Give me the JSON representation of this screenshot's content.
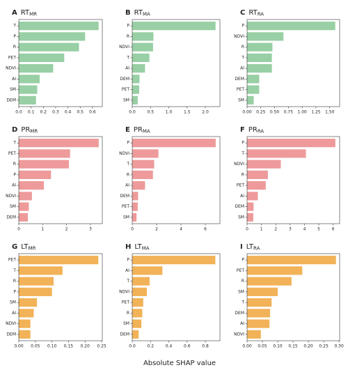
{
  "xlabel": "Absolute SHAP value",
  "chart_data": [
    {
      "type": "bar",
      "orientation": "horizontal",
      "panel": "A",
      "title": "RT",
      "title_sub": "MR",
      "color": "#98cfa4",
      "categories": [
        "T",
        "P",
        "R",
        "PET",
        "NDVI",
        "AI",
        "SM",
        "DEM"
      ],
      "values": [
        0.65,
        0.54,
        0.49,
        0.37,
        0.28,
        0.17,
        0.15,
        0.14
      ],
      "xlim": [
        0,
        0.68
      ],
      "xticks": [
        {
          "value": 0,
          "label": "0.0"
        },
        0.1,
        0.2,
        0.3,
        0.4,
        0.5,
        0.6
      ]
    },
    {
      "type": "bar",
      "orientation": "horizontal",
      "panel": "B",
      "title": "RT",
      "title_sub": "MA",
      "color": "#98cfa4",
      "categories": [
        "P",
        "R",
        "NDVI",
        "T",
        "AI",
        "DEM",
        "PET",
        "SM"
      ],
      "values": [
        2.28,
        0.58,
        0.57,
        0.47,
        0.35,
        0.2,
        0.19,
        0.15
      ],
      "xlim": [
        0,
        2.4
      ],
      "xticks": [
        {
          "value": 0,
          "label": "0.0"
        },
        0.5,
        {
          "value": 1,
          "label": "1.0"
        },
        1.5,
        {
          "value": 2,
          "label": "2.0"
        }
      ]
    },
    {
      "type": "bar",
      "orientation": "horizontal",
      "panel": "C",
      "title": "RT",
      "title_sub": "RA",
      "color": "#98cfa4",
      "categories": [
        "P",
        "NDVI",
        "R",
        "T",
        "AI",
        "DEM",
        "PET",
        "SM"
      ],
      "values": [
        1.6,
        0.66,
        0.46,
        0.45,
        0.45,
        0.22,
        0.22,
        0.12
      ],
      "xlim": [
        0,
        1.68
      ],
      "xticks": [
        {
          "value": 0,
          "label": "0.00"
        },
        0.25,
        {
          "value": 0.5,
          "label": "0.50"
        },
        0.75,
        {
          "value": 1,
          "label": "1.00"
        },
        1.25,
        {
          "value": 1.5,
          "label": "1.50"
        }
      ]
    },
    {
      "type": "bar",
      "orientation": "horizontal",
      "panel": "D",
      "title": "PR",
      "title_sub": "MR",
      "color": "#ee9a9a",
      "categories": [
        "T",
        "PET",
        "R",
        "P",
        "AI",
        "NDVI",
        "SM",
        "DEM"
      ],
      "values": [
        3.35,
        2.15,
        2.1,
        1.35,
        1.05,
        0.55,
        0.42,
        0.38
      ],
      "xlim": [
        0,
        3.5
      ],
      "xticks": [
        0,
        1,
        2,
        3
      ]
    },
    {
      "type": "bar",
      "orientation": "horizontal",
      "panel": "E",
      "title": "PR",
      "title_sub": "MA",
      "color": "#ee9a9a",
      "categories": [
        "P",
        "NDVI",
        "T",
        "R",
        "AI",
        "DEM",
        "PET",
        "SM"
      ],
      "values": [
        6.85,
        2.15,
        1.8,
        1.7,
        1.05,
        0.48,
        0.45,
        0.35
      ],
      "xlim": [
        0,
        7.2
      ],
      "xticks": [
        0,
        2,
        4,
        6
      ]
    },
    {
      "type": "bar",
      "orientation": "horizontal",
      "panel": "F",
      "title": "PR",
      "title_sub": "RA",
      "color": "#ee9a9a",
      "categories": [
        "P",
        "T",
        "NDVI",
        "R",
        "PET",
        "AI",
        "DEM",
        "SM"
      ],
      "values": [
        6.15,
        4.1,
        2.35,
        1.45,
        1.3,
        0.75,
        0.45,
        0.43
      ],
      "xlim": [
        0,
        6.45
      ],
      "xticks": [
        0,
        1,
        2,
        3,
        4,
        5,
        6
      ]
    },
    {
      "type": "bar",
      "orientation": "horizontal",
      "panel": "G",
      "title": "LT",
      "title_sub": "MR",
      "color": "#f2b257",
      "categories": [
        "PET",
        "T",
        "R",
        "P",
        "SM",
        "AI",
        "NDVI",
        "DEM"
      ],
      "values": [
        0.24,
        0.132,
        0.105,
        0.1,
        0.055,
        0.045,
        0.035,
        0.035
      ],
      "xlim": [
        0,
        0.252
      ],
      "xticks": [
        {
          "value": 0,
          "label": "0.00"
        },
        0.05,
        {
          "value": 0.1,
          "label": "0.10"
        },
        0.15,
        {
          "value": 0.2,
          "label": "0.20"
        },
        0.25
      ]
    },
    {
      "type": "bar",
      "orientation": "horizontal",
      "panel": "H",
      "title": "LT",
      "title_sub": "MA",
      "color": "#f2b257",
      "categories": [
        "P",
        "AI",
        "T",
        "NDVI",
        "PET",
        "R",
        "SM",
        "DEM"
      ],
      "values": [
        0.91,
        0.33,
        0.19,
        0.16,
        0.12,
        0.11,
        0.1,
        0.07
      ],
      "xlim": [
        0,
        0.96
      ],
      "xticks": [
        {
          "value": 0,
          "label": "0.0"
        },
        0.2,
        0.4,
        0.6,
        0.8
      ]
    },
    {
      "type": "bar",
      "orientation": "horizontal",
      "panel": "I",
      "title": "LT",
      "title_sub": "RA",
      "color": "#f2b257",
      "categories": [
        "P",
        "PET",
        "R",
        "SM",
        "T",
        "DEM",
        "AI",
        "NDVI"
      ],
      "values": [
        0.29,
        0.18,
        0.145,
        0.1,
        0.08,
        0.075,
        0.073,
        0.045
      ],
      "xlim": [
        0,
        0.302
      ],
      "xticks": [
        {
          "value": 0,
          "label": "0.00"
        },
        0.05,
        {
          "value": 0.1,
          "label": "0.10"
        },
        0.15,
        {
          "value": 0.2,
          "label": "0.20"
        },
        0.25,
        {
          "value": 0.3,
          "label": "0.30"
        }
      ]
    }
  ]
}
